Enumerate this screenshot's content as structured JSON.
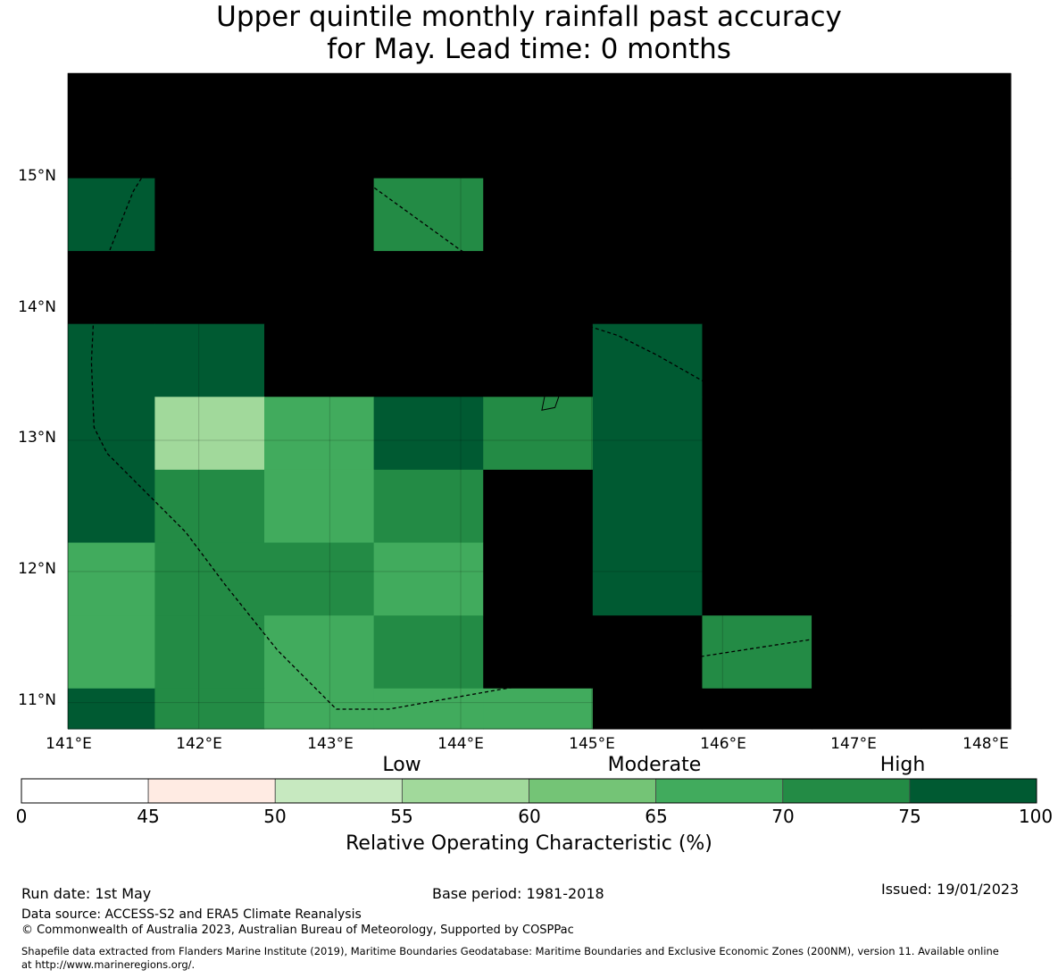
{
  "title": {
    "line1": "Upper quintile monthly rainfall past accuracy",
    "line2": "for May. Lead time: 0 months"
  },
  "map": {
    "lon_labels": [
      "141°E",
      "142°E",
      "143°E",
      "144°E",
      "145°E",
      "146°E",
      "147°E",
      "148°E"
    ],
    "lat_labels": [
      "15°N",
      "14°N",
      "13°N",
      "12°N",
      "11°N"
    ],
    "lon_range": [
      141.0,
      148.2
    ],
    "lat_range": [
      10.8,
      15.8
    ],
    "grid_lon_edges": [
      141.0,
      141.664,
      142.5,
      143.336,
      144.172,
      145.008,
      145.844,
      146.68,
      147.516,
      148.2
    ],
    "grid_lat_edges": [
      15.8,
      15.0,
      14.444,
      13.888,
      13.332,
      12.776,
      12.22,
      11.664,
      11.108,
      10.8
    ],
    "cells_roc_class": [
      [
        8,
        8,
        8,
        8,
        8,
        8,
        8,
        8,
        8
      ],
      [
        7,
        8,
        8,
        6,
        8,
        8,
        8,
        8,
        8
      ],
      [
        8,
        8,
        8,
        8,
        8,
        8,
        8,
        8,
        8
      ],
      [
        7,
        7,
        8,
        8,
        8,
        7,
        8,
        8,
        8
      ],
      [
        7,
        3,
        5,
        7,
        6,
        7,
        8,
        8,
        8
      ],
      [
        7,
        6,
        5,
        6,
        8,
        7,
        8,
        8,
        8
      ],
      [
        5,
        6,
        6,
        5,
        8,
        7,
        8,
        8,
        8
      ],
      [
        5,
        6,
        5,
        6,
        8,
        8,
        6,
        8,
        8
      ],
      [
        7,
        6,
        5,
        5,
        5,
        8,
        8,
        8,
        8
      ]
    ],
    "eez_boundary": [
      [
        142.1,
        15.73
      ],
      [
        143.1,
        15.1
      ],
      [
        144.0,
        14.45
      ],
      [
        144.6,
        14.1
      ],
      [
        144.95,
        13.88
      ],
      [
        145.2,
        13.8
      ],
      [
        145.5,
        13.65
      ],
      [
        145.8,
        13.48
      ],
      [
        146.3,
        13.2
      ],
      [
        146.9,
        12.88
      ],
      [
        147.5,
        12.55
      ],
      [
        148.05,
        12.23
      ],
      [
        147.8,
        11.85
      ],
      [
        147.66,
        11.64
      ],
      [
        146.8,
        11.5
      ],
      [
        145.5,
        11.3
      ],
      [
        144.3,
        11.1
      ],
      [
        143.45,
        10.95
      ],
      [
        143.05,
        10.95
      ],
      [
        142.6,
        11.4
      ],
      [
        142.2,
        11.9
      ],
      [
        141.9,
        12.3
      ],
      [
        141.6,
        12.6
      ],
      [
        141.3,
        12.9
      ],
      [
        141.2,
        13.1
      ],
      [
        141.18,
        13.6
      ],
      [
        141.2,
        14.0
      ],
      [
        141.3,
        14.4
      ],
      [
        141.5,
        14.9
      ],
      [
        141.75,
        15.3
      ],
      [
        142.1,
        15.73
      ]
    ],
    "islands": [
      [
        [
          144.62,
          13.23
        ],
        [
          144.72,
          13.25
        ],
        [
          144.8,
          13.48
        ],
        [
          144.92,
          13.58
        ],
        [
          144.95,
          13.63
        ],
        [
          144.9,
          13.65
        ],
        [
          144.85,
          13.7
        ],
        [
          144.8,
          13.68
        ],
        [
          144.75,
          13.6
        ],
        [
          144.72,
          13.5
        ],
        [
          144.62,
          13.48
        ],
        [
          144.6,
          13.42
        ],
        [
          144.65,
          13.38
        ],
        [
          144.62,
          13.23
        ]
      ],
      [
        [
          145.08,
          14.12
        ],
        [
          145.16,
          14.15
        ],
        [
          145.23,
          14.18
        ],
        [
          145.26,
          14.17
        ],
        [
          145.24,
          14.14
        ],
        [
          145.18,
          14.12
        ],
        [
          145.12,
          14.1
        ],
        [
          145.08,
          14.12
        ]
      ],
      [
        [
          145.55,
          14.85
        ],
        [
          145.58,
          14.88
        ],
        [
          145.64,
          14.92
        ],
        [
          145.62,
          14.99
        ],
        [
          145.67,
          15.07
        ],
        [
          145.7,
          15.1
        ],
        [
          145.64,
          15.08
        ],
        [
          145.6,
          15.02
        ],
        [
          145.55,
          14.97
        ],
        [
          145.57,
          14.9
        ],
        [
          145.55,
          14.85
        ]
      ],
      [
        [
          145.75,
          15.1
        ],
        [
          145.8,
          15.15
        ],
        [
          145.86,
          15.23
        ],
        [
          145.82,
          15.26
        ],
        [
          145.77,
          15.22
        ],
        [
          145.73,
          15.16
        ],
        [
          145.75,
          15.1
        ]
      ],
      [
        [
          145.48,
          14.83
        ],
        [
          145.53,
          14.85
        ],
        [
          145.51,
          14.82
        ],
        [
          145.48,
          14.83
        ]
      ]
    ]
  },
  "colorbar": {
    "ticks": [
      "0",
      "45",
      "50",
      "55",
      "60",
      "65",
      "70",
      "75",
      "100"
    ],
    "colors": [
      "#ffffff",
      "#ffebe3",
      "#c7e9c0",
      "#a1d99b",
      "#74c476",
      "#41ab5d",
      "#238b45",
      "#005a32"
    ],
    "categories": [
      "Low",
      "Moderate",
      "High"
    ],
    "label": "Relative Operating Characteristic (%)"
  },
  "footer": {
    "run_date": "Run date: 1st May",
    "base_period": "Base period: 1981-2018",
    "issued": "Issued: 19/01/2023",
    "data_source": "Data source: ACCESS-S2 and ERA5 Climate Reanalysis",
    "copyright": "© Commonwealth of Australia 2023, Australian Bureau of Meteorology, Supported by COSPPac",
    "shapefile_line1": "Shapefile data extracted from Flanders Marine Institute (2019), Maritime Boundaries Geodatabase: Maritime Boundaries and Exclusive Economic Zones (200NM), version 11. Available online",
    "shapefile_line2": "at http://www.marineregions.org/."
  }
}
